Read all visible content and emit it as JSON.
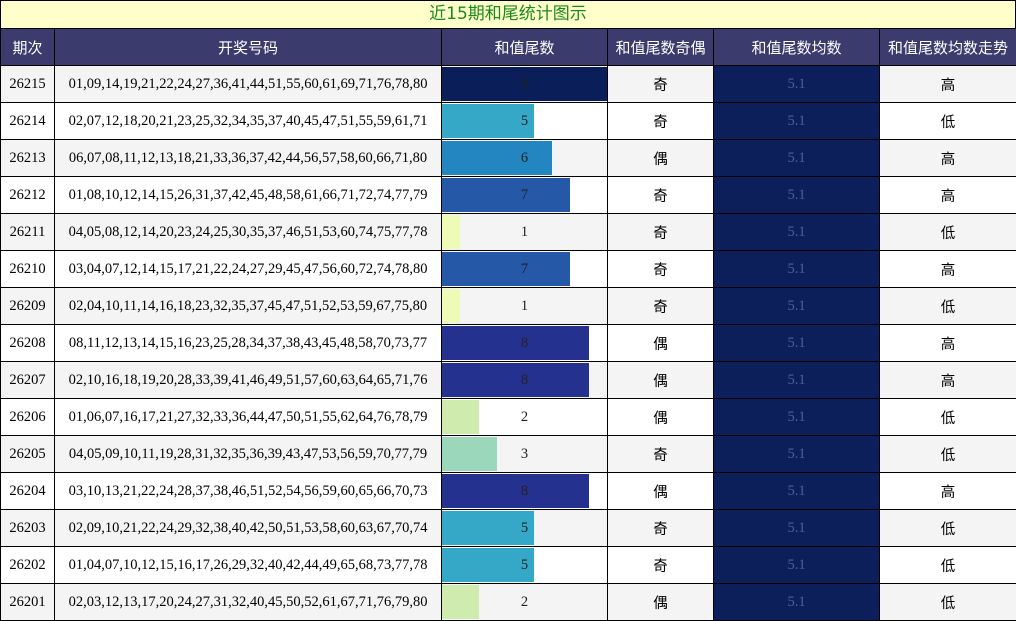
{
  "title": "近15期和尾统计图示",
  "colors": {
    "header_bg": "#3b3b6d",
    "title_bg": "#ffffcc",
    "title_text": "#1a8a1a",
    "avg_bg": "#0c1f5b",
    "tail_colors": {
      "1": "#eefbb6",
      "2": "#cfecae",
      "3": "#9ad7bb",
      "5": "#35a8c8",
      "6": "#2386c0",
      "7": "#2658a8",
      "8": "#25318f",
      "9": "#0a1f5a"
    }
  },
  "headers": [
    "期次",
    "开奖号码",
    "和值尾数",
    "和值尾数奇偶",
    "和值尾数均数",
    "和值尾数均数走势"
  ],
  "rows": [
    {
      "issue": "26215",
      "numbers": "01,09,14,19,21,22,24,27,36,41,44,51,55,60,61,69,71,76,78,80",
      "tail": 9,
      "parity": "奇",
      "avg": "5.1",
      "trend": "高"
    },
    {
      "issue": "26214",
      "numbers": "02,07,12,18,20,21,23,25,32,34,35,37,40,45,47,51,55,59,61,71",
      "tail": 5,
      "parity": "奇",
      "avg": "5.1",
      "trend": "低"
    },
    {
      "issue": "26213",
      "numbers": "06,07,08,11,12,13,18,21,33,36,37,42,44,56,57,58,60,66,71,80",
      "tail": 6,
      "parity": "偶",
      "avg": "5.1",
      "trend": "高"
    },
    {
      "issue": "26212",
      "numbers": "01,08,10,12,14,15,26,31,37,42,45,48,58,61,66,71,72,74,77,79",
      "tail": 7,
      "parity": "奇",
      "avg": "5.1",
      "trend": "高"
    },
    {
      "issue": "26211",
      "numbers": "04,05,08,12,14,20,23,24,25,30,35,37,46,51,53,60,74,75,77,78",
      "tail": 1,
      "parity": "奇",
      "avg": "5.1",
      "trend": "低"
    },
    {
      "issue": "26210",
      "numbers": "03,04,07,12,14,15,17,21,22,24,27,29,45,47,56,60,72,74,78,80",
      "tail": 7,
      "parity": "奇",
      "avg": "5.1",
      "trend": "高"
    },
    {
      "issue": "26209",
      "numbers": "02,04,10,11,14,16,18,23,32,35,37,45,47,51,52,53,59,67,75,80",
      "tail": 1,
      "parity": "奇",
      "avg": "5.1",
      "trend": "低"
    },
    {
      "issue": "26208",
      "numbers": "08,11,12,13,14,15,16,23,25,28,34,37,38,43,45,48,58,70,73,77",
      "tail": 8,
      "parity": "偶",
      "avg": "5.1",
      "trend": "高"
    },
    {
      "issue": "26207",
      "numbers": "02,10,16,18,19,20,28,33,39,41,46,49,51,57,60,63,64,65,71,76",
      "tail": 8,
      "parity": "偶",
      "avg": "5.1",
      "trend": "高"
    },
    {
      "issue": "26206",
      "numbers": "01,06,07,16,17,21,27,32,33,36,44,47,50,51,55,62,64,76,78,79",
      "tail": 2,
      "parity": "偶",
      "avg": "5.1",
      "trend": "低"
    },
    {
      "issue": "26205",
      "numbers": "04,05,09,10,11,19,28,31,32,35,36,39,43,47,53,56,59,70,77,79",
      "tail": 3,
      "parity": "奇",
      "avg": "5.1",
      "trend": "低"
    },
    {
      "issue": "26204",
      "numbers": "03,10,13,21,22,24,28,37,38,46,51,52,54,56,59,60,65,66,70,73",
      "tail": 8,
      "parity": "偶",
      "avg": "5.1",
      "trend": "高"
    },
    {
      "issue": "26203",
      "numbers": "02,09,10,21,22,24,29,32,38,40,42,50,51,53,58,60,63,67,70,74",
      "tail": 5,
      "parity": "奇",
      "avg": "5.1",
      "trend": "低"
    },
    {
      "issue": "26202",
      "numbers": "01,04,07,10,12,15,16,17,26,29,32,40,42,44,49,65,68,73,77,78",
      "tail": 5,
      "parity": "奇",
      "avg": "5.1",
      "trend": "低"
    },
    {
      "issue": "26201",
      "numbers": "02,03,12,13,17,20,24,27,31,32,40,45,50,52,61,67,71,76,79,80",
      "tail": 2,
      "parity": "偶",
      "avg": "5.1",
      "trend": "低"
    }
  ]
}
